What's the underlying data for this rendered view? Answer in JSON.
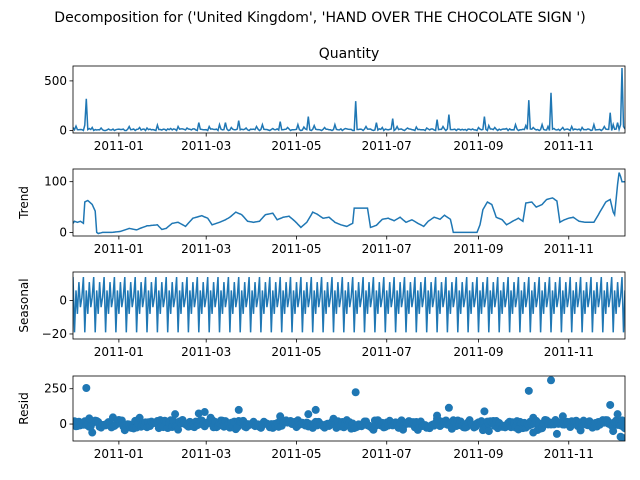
{
  "figure": {
    "suptitle": "Decomposition for ('United Kingdom', 'HAND OVER THE CHOCOLATE   SIGN ')"
  },
  "colors": {
    "series": "#1f77b4",
    "axis": "#000000",
    "background": "#ffffff"
  },
  "x_ticks": [
    "2011-01",
    "2011-03",
    "2011-05",
    "2011-07",
    "2011-09",
    "2011-11"
  ],
  "chart_data": [
    {
      "type": "line",
      "title": "Quantity",
      "ylabel": "",
      "xlim": [
        "2010-12-01",
        "2011-12-09"
      ],
      "ylim": [
        -25,
        650
      ],
      "yticks": [
        0,
        500
      ],
      "x_ticks": [
        "2011-01",
        "2011-03",
        "2011-05",
        "2011-07",
        "2011-09",
        "2011-11"
      ],
      "series": [
        {
          "baseline": 12,
          "points": [
            [
              "2010-12-01",
              30
            ],
            [
              "2010-12-03",
              45
            ],
            [
              "2010-12-06",
              10
            ],
            [
              "2010-12-09",
              55
            ],
            [
              "2010-12-10",
              320
            ],
            [
              "2010-12-12",
              20
            ],
            [
              "2010-12-14",
              30
            ],
            [
              "2010-12-17",
              5
            ],
            [
              "2010-12-20",
              25
            ],
            [
              "2010-12-23",
              0
            ],
            [
              "2011-01-06",
              0
            ],
            [
              "2011-01-08",
              40
            ],
            [
              "2011-01-15",
              30
            ],
            [
              "2011-01-20",
              25
            ],
            [
              "2011-01-27",
              55
            ],
            [
              "2011-02-05",
              20
            ],
            [
              "2011-02-10",
              40
            ],
            [
              "2011-02-16",
              25
            ],
            [
              "2011-02-24",
              80
            ],
            [
              "2011-03-03",
              40
            ],
            [
              "2011-03-10",
              60
            ],
            [
              "2011-03-14",
              80
            ],
            [
              "2011-03-18",
              30
            ],
            [
              "2011-03-23",
              100
            ],
            [
              "2011-03-28",
              25
            ],
            [
              "2011-04-04",
              40
            ],
            [
              "2011-04-08",
              60
            ],
            [
              "2011-04-15",
              20
            ],
            [
              "2011-04-20",
              90
            ],
            [
              "2011-04-25",
              30
            ],
            [
              "2011-05-02",
              60
            ],
            [
              "2011-05-06",
              35
            ],
            [
              "2011-05-09",
              140
            ],
            [
              "2011-05-13",
              50
            ],
            [
              "2011-05-20",
              30
            ],
            [
              "2011-05-27",
              60
            ],
            [
              "2011-06-03",
              20
            ],
            [
              "2011-06-09",
              0
            ],
            [
              "2011-06-10",
              295
            ],
            [
              "2011-06-12",
              10
            ],
            [
              "2011-06-17",
              40
            ],
            [
              "2011-06-24",
              80
            ],
            [
              "2011-06-28",
              30
            ],
            [
              "2011-07-05",
              120
            ],
            [
              "2011-07-08",
              40
            ],
            [
              "2011-07-15",
              25
            ],
            [
              "2011-07-21",
              35
            ],
            [
              "2011-07-28",
              25
            ],
            [
              "2011-08-04",
              110
            ],
            [
              "2011-08-08",
              40
            ],
            [
              "2011-08-12",
              160
            ],
            [
              "2011-08-15",
              10
            ],
            [
              "2011-09-01",
              30
            ],
            [
              "2011-09-05",
              140
            ],
            [
              "2011-09-08",
              50
            ],
            [
              "2011-09-12",
              30
            ],
            [
              "2011-09-20",
              20
            ],
            [
              "2011-09-26",
              60
            ],
            [
              "2011-10-03",
              50
            ],
            [
              "2011-10-05",
              305
            ],
            [
              "2011-10-08",
              30
            ],
            [
              "2011-10-14",
              60
            ],
            [
              "2011-10-18",
              40
            ],
            [
              "2011-10-20",
              380
            ],
            [
              "2011-10-22",
              20
            ],
            [
              "2011-10-28",
              30
            ],
            [
              "2011-11-03",
              40
            ],
            [
              "2011-11-10",
              30
            ],
            [
              "2011-11-18",
              60
            ],
            [
              "2011-11-25",
              40
            ],
            [
              "2011-11-29",
              180
            ],
            [
              "2011-12-01",
              60
            ],
            [
              "2011-12-04",
              80
            ],
            [
              "2011-12-06",
              60
            ],
            [
              "2011-12-07",
              630
            ],
            [
              "2011-12-08",
              40
            ]
          ]
        }
      ]
    },
    {
      "type": "line",
      "title": "",
      "ylabel": "Trend",
      "xlim": [
        "2010-12-01",
        "2011-12-09"
      ],
      "ylim": [
        -7,
        125
      ],
      "yticks": [
        0,
        100
      ],
      "x_ticks": [
        "2011-01",
        "2011-03",
        "2011-05",
        "2011-07",
        "2011-09",
        "2011-11"
      ],
      "series": [
        {
          "points": [
            [
              "2010-12-01",
              18
            ],
            [
              "2010-12-02",
              22
            ],
            [
              "2010-12-04",
              20
            ],
            [
              "2010-12-06",
              22
            ],
            [
              "2010-12-08",
              18
            ],
            [
              "2010-12-09",
              60
            ],
            [
              "2010-12-11",
              63
            ],
            [
              "2010-12-14",
              55
            ],
            [
              "2010-12-16",
              42
            ],
            [
              "2010-12-17",
              0
            ],
            [
              "2010-12-18",
              -2
            ],
            [
              "2010-12-21",
              0
            ],
            [
              "2010-12-27",
              0
            ],
            [
              "2011-01-02",
              2
            ],
            [
              "2011-01-08",
              8
            ],
            [
              "2011-01-13",
              5
            ],
            [
              "2011-01-17",
              10
            ],
            [
              "2011-01-20",
              13
            ],
            [
              "2011-01-27",
              15
            ],
            [
              "2011-01-30",
              6
            ],
            [
              "2011-02-02",
              8
            ],
            [
              "2011-02-06",
              18
            ],
            [
              "2011-02-10",
              20
            ],
            [
              "2011-02-15",
              12
            ],
            [
              "2011-02-20",
              28
            ],
            [
              "2011-02-26",
              33
            ],
            [
              "2011-03-02",
              28
            ],
            [
              "2011-03-05",
              15
            ],
            [
              "2011-03-10",
              20
            ],
            [
              "2011-03-14",
              25
            ],
            [
              "2011-03-17",
              30
            ],
            [
              "2011-03-21",
              40
            ],
            [
              "2011-03-25",
              35
            ],
            [
              "2011-03-29",
              22
            ],
            [
              "2011-04-02",
              20
            ],
            [
              "2011-04-06",
              22
            ],
            [
              "2011-04-10",
              35
            ],
            [
              "2011-04-15",
              38
            ],
            [
              "2011-04-18",
              25
            ],
            [
              "2011-04-22",
              30
            ],
            [
              "2011-04-26",
              32
            ],
            [
              "2011-04-30",
              22
            ],
            [
              "2011-05-04",
              10
            ],
            [
              "2011-05-08",
              20
            ],
            [
              "2011-05-12",
              40
            ],
            [
              "2011-05-15",
              36
            ],
            [
              "2011-05-19",
              28
            ],
            [
              "2011-05-23",
              30
            ],
            [
              "2011-05-27",
              20
            ],
            [
              "2011-05-31",
              15
            ],
            [
              "2011-06-04",
              12
            ],
            [
              "2011-06-08",
              18
            ],
            [
              "2011-06-09",
              48
            ],
            [
              "2011-06-18",
              48
            ],
            [
              "2011-06-20",
              10
            ],
            [
              "2011-06-24",
              14
            ],
            [
              "2011-06-28",
              26
            ],
            [
              "2011-07-02",
              28
            ],
            [
              "2011-07-06",
              23
            ],
            [
              "2011-07-10",
              30
            ],
            [
              "2011-07-14",
              20
            ],
            [
              "2011-07-18",
              25
            ],
            [
              "2011-07-22",
              18
            ],
            [
              "2011-07-26",
              12
            ],
            [
              "2011-07-29",
              22
            ],
            [
              "2011-08-02",
              30
            ],
            [
              "2011-08-06",
              26
            ],
            [
              "2011-08-09",
              34
            ],
            [
              "2011-08-13",
              26
            ],
            [
              "2011-08-15",
              0
            ],
            [
              "2011-08-31",
              0
            ],
            [
              "2011-09-02",
              15
            ],
            [
              "2011-09-04",
              45
            ],
            [
              "2011-09-07",
              60
            ],
            [
              "2011-09-10",
              55
            ],
            [
              "2011-09-13",
              30
            ],
            [
              "2011-09-17",
              25
            ],
            [
              "2011-09-20",
              15
            ],
            [
              "2011-09-24",
              22
            ],
            [
              "2011-09-28",
              28
            ],
            [
              "2011-10-01",
              22
            ],
            [
              "2011-10-03",
              58
            ],
            [
              "2011-10-07",
              60
            ],
            [
              "2011-10-10",
              50
            ],
            [
              "2011-10-14",
              55
            ],
            [
              "2011-10-17",
              65
            ],
            [
              "2011-10-21",
              68
            ],
            [
              "2011-10-24",
              62
            ],
            [
              "2011-10-26",
              20
            ],
            [
              "2011-10-29",
              25
            ],
            [
              "2011-11-01",
              28
            ],
            [
              "2011-11-04",
              30
            ],
            [
              "2011-11-08",
              22
            ],
            [
              "2011-11-12",
              20
            ],
            [
              "2011-11-18",
              20
            ],
            [
              "2011-11-22",
              40
            ],
            [
              "2011-11-26",
              60
            ],
            [
              "2011-11-29",
              65
            ],
            [
              "2011-12-01",
              40
            ],
            [
              "2011-12-02",
              35
            ],
            [
              "2011-12-04",
              95
            ],
            [
              "2011-12-05",
              118
            ],
            [
              "2011-12-06",
              110
            ],
            [
              "2011-12-07",
              100
            ]
          ]
        }
      ]
    },
    {
      "type": "line",
      "title": "",
      "ylabel": "Seasonal",
      "xlim": [
        "2010-12-01",
        "2011-12-09"
      ],
      "ylim": [
        -23,
        17
      ],
      "yticks": [
        -20,
        0
      ],
      "x_ticks": [
        "2011-01",
        "2011-03",
        "2011-05",
        "2011-07",
        "2011-09",
        "2011-11"
      ],
      "period_days": 7,
      "series": [
        {
          "weekly_pattern": [
            14,
            -19,
            6,
            -8,
            11,
            -4,
            2
          ]
        }
      ]
    },
    {
      "type": "scatter",
      "title": "",
      "ylabel": "Resid",
      "xlim": [
        "2010-12-01",
        "2011-12-09"
      ],
      "ylim": [
        -120,
        340
      ],
      "yticks": [
        0,
        250
      ],
      "x_ticks": [
        "2011-01",
        "2011-03",
        "2011-05",
        "2011-07",
        "2011-09",
        "2011-11"
      ],
      "series": [
        {
          "bulk_range": [
            -35,
            30
          ],
          "outliers": [
            [
              "2010-12-10",
              255
            ],
            [
              "2010-12-12",
              40
            ],
            [
              "2010-12-14",
              -60
            ],
            [
              "2011-02-08",
              70
            ],
            [
              "2011-02-24",
              75
            ],
            [
              "2011-02-28",
              85
            ],
            [
              "2011-03-23",
              100
            ],
            [
              "2011-04-20",
              55
            ],
            [
              "2011-05-09",
              70
            ],
            [
              "2011-05-14",
              100
            ],
            [
              "2011-06-10",
              225
            ],
            [
              "2011-07-12",
              -40
            ],
            [
              "2011-08-04",
              60
            ],
            [
              "2011-08-12",
              115
            ],
            [
              "2011-09-05",
              90
            ],
            [
              "2011-09-08",
              -50
            ],
            [
              "2011-10-05",
              235
            ],
            [
              "2011-10-08",
              -60
            ],
            [
              "2011-10-20",
              310
            ],
            [
              "2011-10-24",
              -70
            ],
            [
              "2011-10-28",
              55
            ],
            [
              "2011-11-29",
              135
            ],
            [
              "2011-12-01",
              -50
            ],
            [
              "2011-12-04",
              70
            ],
            [
              "2011-12-06",
              -90
            ],
            [
              "2011-12-08",
              -100
            ]
          ]
        }
      ]
    }
  ]
}
